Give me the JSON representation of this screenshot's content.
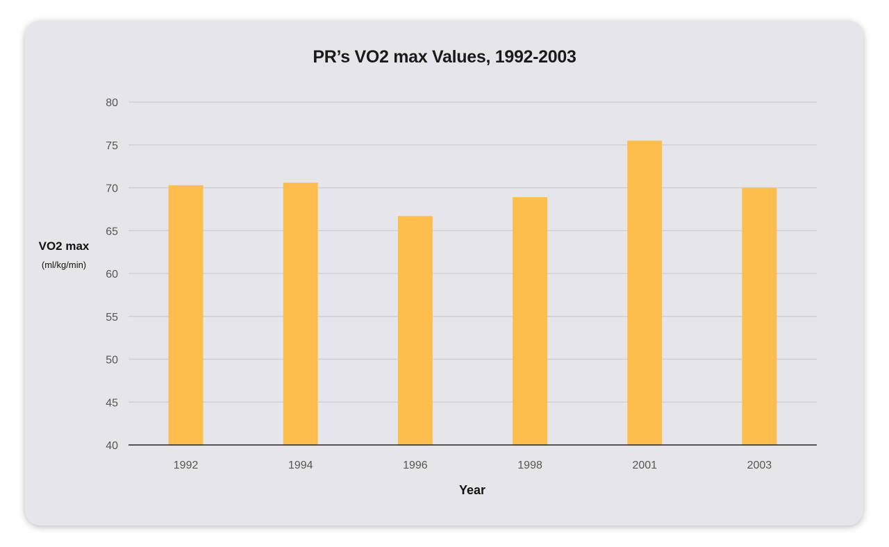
{
  "chart_data": {
    "type": "bar",
    "title": "PR’s VO2 max Values, 1992-2003",
    "xlabel": "Year",
    "ylabel": "VO2 max",
    "ylabel_unit": "(ml/kg/min)",
    "categories": [
      "1992",
      "1994",
      "1996",
      "1998",
      "2001",
      "2003"
    ],
    "values": [
      70.3,
      70.6,
      66.7,
      68.9,
      75.5,
      70.0
    ],
    "ylim": [
      40,
      80
    ],
    "yticks": [
      40,
      45,
      50,
      55,
      60,
      65,
      70,
      75,
      80
    ],
    "grid": true,
    "legend": "none",
    "colors": {
      "bar": "#fdbe4e",
      "grid": "#cfcfd4",
      "axis": "#222222",
      "background": "#e6e6ea"
    }
  }
}
